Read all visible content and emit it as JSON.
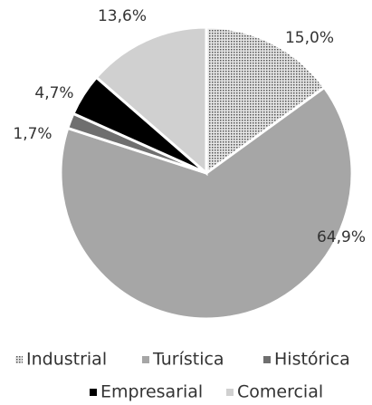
{
  "chart_data": {
    "type": "pie",
    "categories": [
      "Industrial",
      "Turística",
      "Histórica",
      "Empresarial",
      "Comercial"
    ],
    "values": [
      15.0,
      64.9,
      1.7,
      4.7,
      13.6
    ],
    "value_labels": [
      "15,0%",
      "64,9%",
      "1,7%",
      "4,7%",
      "13,6%"
    ],
    "colors": [
      "#bdbdbd",
      "#a6a6a6",
      "#6f6f6f",
      "#000000",
      "#d0d0d0"
    ],
    "fill_pattern": [
      "dots",
      "solid",
      "solid",
      "solid",
      "solid"
    ],
    "legend": "bottom"
  }
}
